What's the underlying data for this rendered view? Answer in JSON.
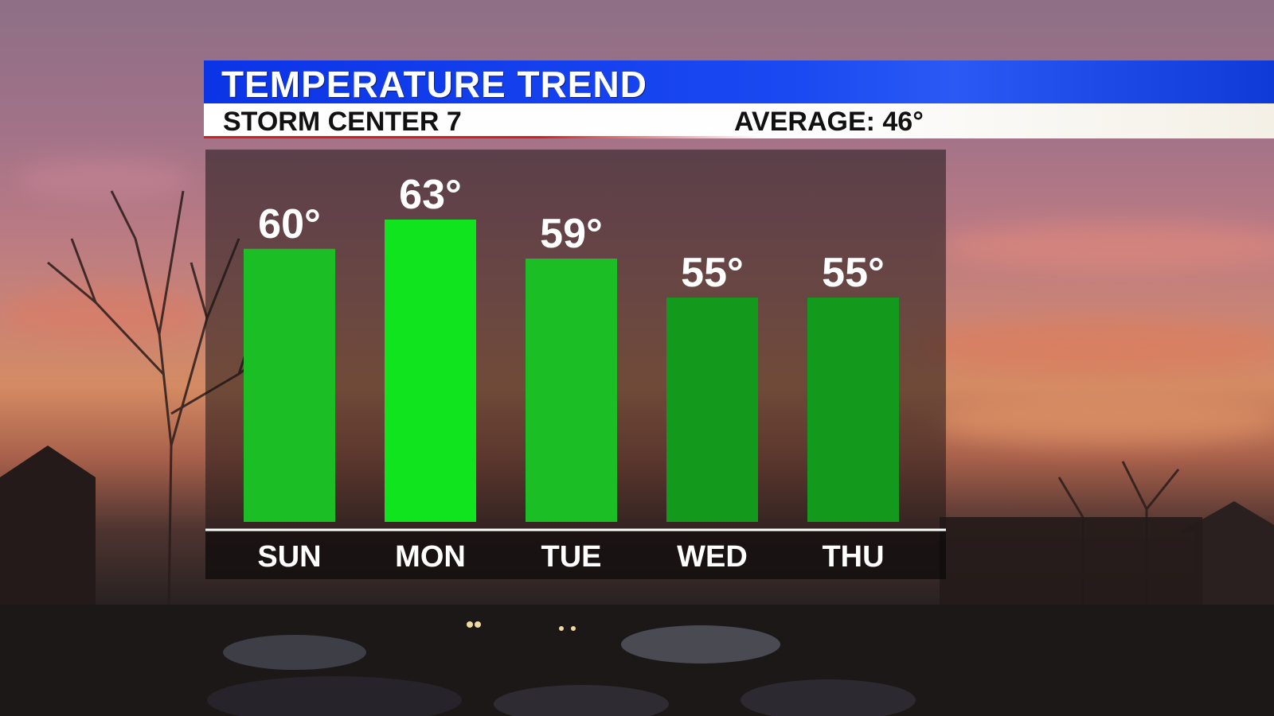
{
  "header": {
    "title": "TEMPERATURE TREND",
    "station": "STORM CENTER 7",
    "average": "AVERAGE: 46°"
  },
  "colors": {
    "title_bar": "#1a49f2",
    "sub_bar": "#ffffff",
    "accent_red": "#d21f1f",
    "bar_highlight": "#0fe41f",
    "bar_normal": "#1bbf25",
    "bar_dim": "#139a1c"
  },
  "chart_data": {
    "type": "bar",
    "title": "TEMPERATURE TREND",
    "categories": [
      "SUN",
      "MON",
      "TUE",
      "WED",
      "THU"
    ],
    "values": [
      60,
      63,
      59,
      55,
      55
    ],
    "value_labels": [
      "60°",
      "63°",
      "59°",
      "55°",
      "55°"
    ],
    "ylim": [
      32,
      63
    ],
    "grid": false,
    "legend": "none"
  }
}
